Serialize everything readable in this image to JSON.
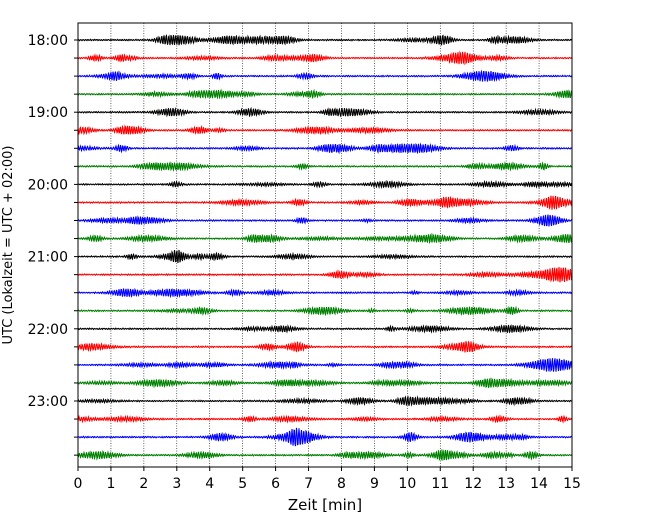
{
  "chart_data": {
    "type": "line",
    "title": "",
    "xlabel": "Zeit  [min]",
    "ylabel": "UTC (Lokalzeit = UTC + 02:00)",
    "xlim": [
      0,
      15
    ],
    "x_ticks": [
      "0",
      "1",
      "2",
      "3",
      "4",
      "5",
      "6",
      "7",
      "8",
      "9",
      "10",
      "11",
      "12",
      "13",
      "14",
      "15"
    ],
    "y_ticks": [
      "18:00",
      "19:00",
      "20:00",
      "21:00",
      "22:00",
      "23:00"
    ],
    "grid": "vertical dotted",
    "trace_count": 24,
    "minutes_per_trace": 15,
    "first_trace": "18:00",
    "trace_colors": [
      "#000000",
      "#ff0000",
      "#0000ff",
      "#008000"
    ]
  }
}
